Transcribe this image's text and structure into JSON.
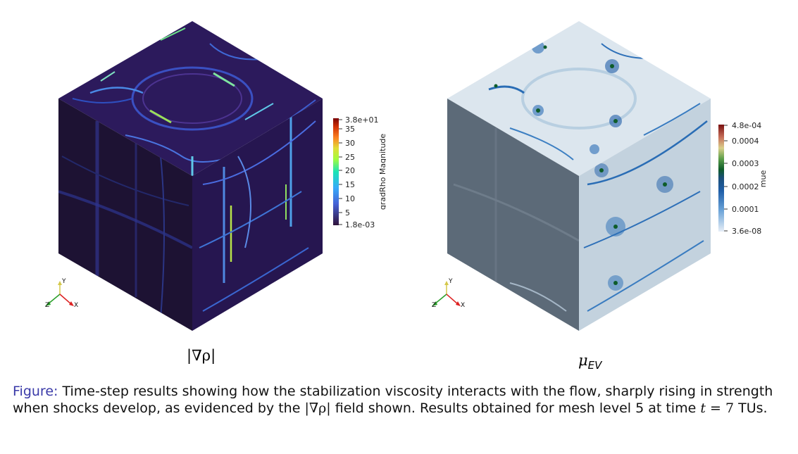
{
  "figures": [
    {
      "colorbar": {
        "title": "gradRho Magnitude",
        "max_label": "3.8e+01",
        "min_label": "1.8e-03",
        "ticks": [
          "35",
          "30",
          "25",
          "20",
          "15",
          "10",
          "5"
        ],
        "colormap": [
          "#30123b",
          "#3e9bfe",
          "#46f884",
          "#e1dd37",
          "#f05b12",
          "#7a0403"
        ]
      },
      "axes": {
        "y": "Y",
        "z": "Z",
        "x": "X"
      },
      "subcaption": "|∇ρ|"
    },
    {
      "colorbar": {
        "title": "mue",
        "max_label": "4.8e-04",
        "min_label": "3.6e-08",
        "ticks": [
          "0.0004",
          "0.0003",
          "0.0002",
          "0.0001"
        ],
        "colormap": [
          "#e6eef6",
          "#2a6db5",
          "#0e5c2a",
          "#d9cf8b",
          "#7a1010"
        ]
      },
      "axes": {
        "y": "Y",
        "z": "Z",
        "x": "X"
      },
      "subcaption_main": "μ",
      "subcaption_sub": "EV"
    }
  ],
  "caption": {
    "label": "Figure:",
    "text1": "Time-step results showing how the stabilization viscosity interacts with the flow, sharply rising in strength when shocks develop, as evidenced by the",
    "math1": "|∇ρ|",
    "text2": "field shown. Results obtained for mesh level 5 at time",
    "math_var": "t",
    "math_eq": "= 7",
    "text3": "TUs."
  }
}
